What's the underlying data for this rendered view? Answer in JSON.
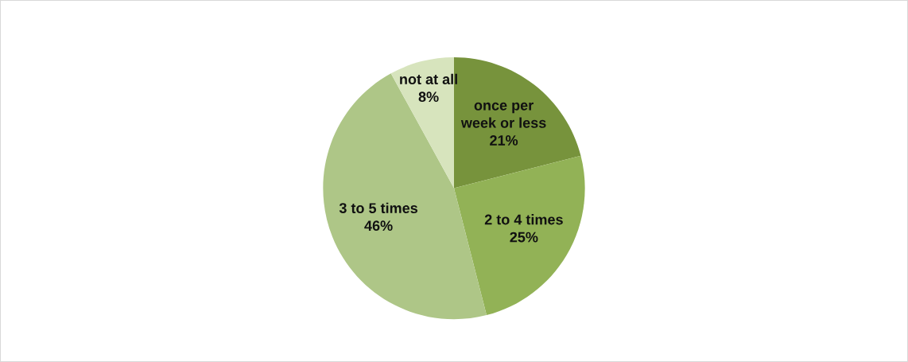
{
  "chart_data": {
    "type": "pie",
    "categories": [
      "once per week or less",
      "2 to 4 times",
      "3 to 5 times",
      "not at all"
    ],
    "values": [
      21,
      25,
      46,
      8
    ],
    "colors": [
      "#77933c",
      "#92b256",
      "#aec687",
      "#d7e4bd"
    ],
    "value_labels": [
      "21%",
      "25%",
      "46%",
      "8%"
    ],
    "legend": false
  }
}
